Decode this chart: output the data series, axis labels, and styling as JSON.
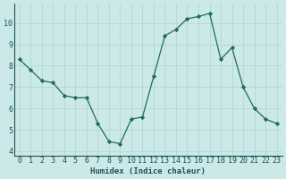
{
  "x": [
    0,
    1,
    2,
    3,
    4,
    5,
    6,
    7,
    8,
    9,
    10,
    11,
    12,
    13,
    14,
    15,
    16,
    17,
    18,
    19,
    20,
    21,
    22,
    23
  ],
  "y": [
    8.3,
    7.8,
    7.3,
    7.2,
    6.6,
    6.5,
    6.5,
    5.3,
    4.45,
    4.35,
    5.5,
    5.6,
    7.5,
    9.4,
    9.7,
    10.2,
    10.3,
    10.45,
    8.3,
    8.85,
    7.0,
    6.0,
    5.5,
    5.3
  ],
  "line_color": "#1e6b5e",
  "marker": "D",
  "marker_size": 2.2,
  "bg_color": "#cce9e9",
  "grid_color": "#b8d5d5",
  "xlabel": "Humidex (Indice chaleur)",
  "xlim": [
    -0.5,
    23.5
  ],
  "ylim": [
    3.8,
    10.9
  ],
  "yticks": [
    4,
    5,
    6,
    7,
    8,
    9,
    10
  ],
  "xticks": [
    0,
    1,
    2,
    3,
    4,
    5,
    6,
    7,
    8,
    9,
    10,
    11,
    12,
    13,
    14,
    15,
    16,
    17,
    18,
    19,
    20,
    21,
    22,
    23
  ],
  "xlabel_fontsize": 6.5,
  "tick_fontsize": 6.0,
  "linewidth": 0.9
}
